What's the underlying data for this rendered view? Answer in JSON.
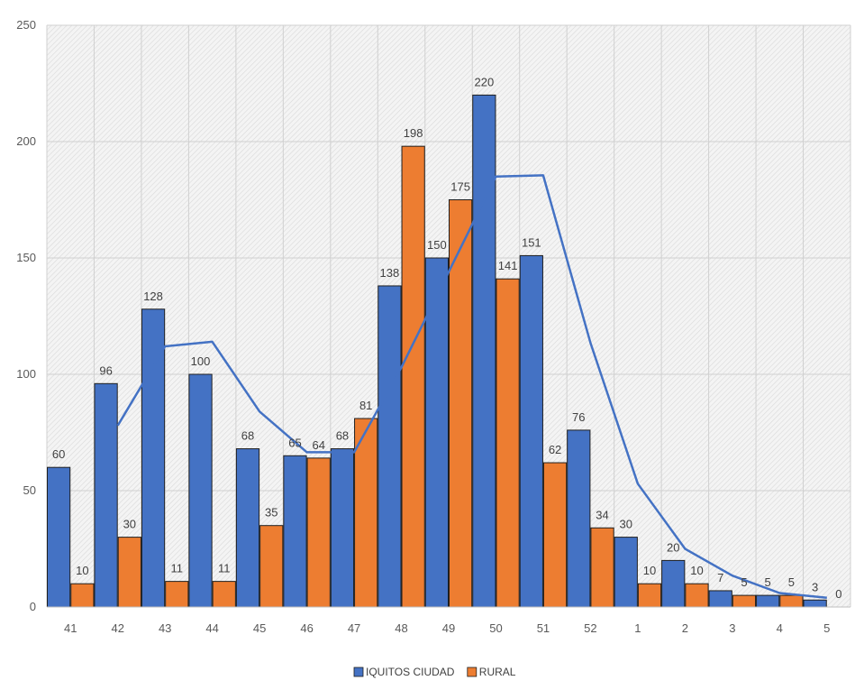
{
  "chart_data": {
    "type": "bar",
    "title": "",
    "xlabel": "",
    "ylabel": "",
    "ylim": [
      0,
      250
    ],
    "yticks": [
      0,
      50,
      100,
      150,
      200,
      250
    ],
    "grid": true,
    "legend_position": "bottom",
    "categories": [
      "41",
      "42",
      "43",
      "44",
      "45",
      "46",
      "47",
      "48",
      "49",
      "50",
      "51",
      "52",
      "1",
      "2",
      "3",
      "4",
      "5"
    ],
    "series": [
      {
        "name": "IQUITOS CIUDAD",
        "color": "#4472C4",
        "values": [
          60,
          96,
          128,
          100,
          68,
          65,
          68,
          138,
          150,
          220,
          151,
          76,
          30,
          20,
          7,
          5,
          3
        ],
        "labels": [
          "60",
          "96",
          "128",
          "100",
          "68",
          "65",
          "68",
          "138",
          "150",
          "220",
          "151",
          "76",
          "30",
          "20",
          "7",
          "5",
          "3"
        ]
      },
      {
        "name": "RURAL",
        "color": "#ED7D31",
        "values": [
          10,
          30,
          11,
          11,
          35,
          64,
          81,
          198,
          175,
          141,
          62,
          34,
          10,
          10,
          5,
          5,
          0
        ],
        "labels": [
          "10",
          "30",
          "11",
          "11",
          "35",
          "64",
          "81",
          "198",
          "175",
          "141",
          "62",
          "34",
          "10",
          "10",
          "5",
          "5",
          "0"
        ]
      }
    ],
    "trendline": {
      "color": "#4472C4",
      "style": "moving average of IQUITOS CIUDAD",
      "values": [
        null,
        78,
        112,
        114,
        84,
        66.5,
        66.5,
        103,
        144,
        185,
        185.5,
        113.5,
        53,
        25,
        13.5,
        6,
        4
      ]
    }
  }
}
